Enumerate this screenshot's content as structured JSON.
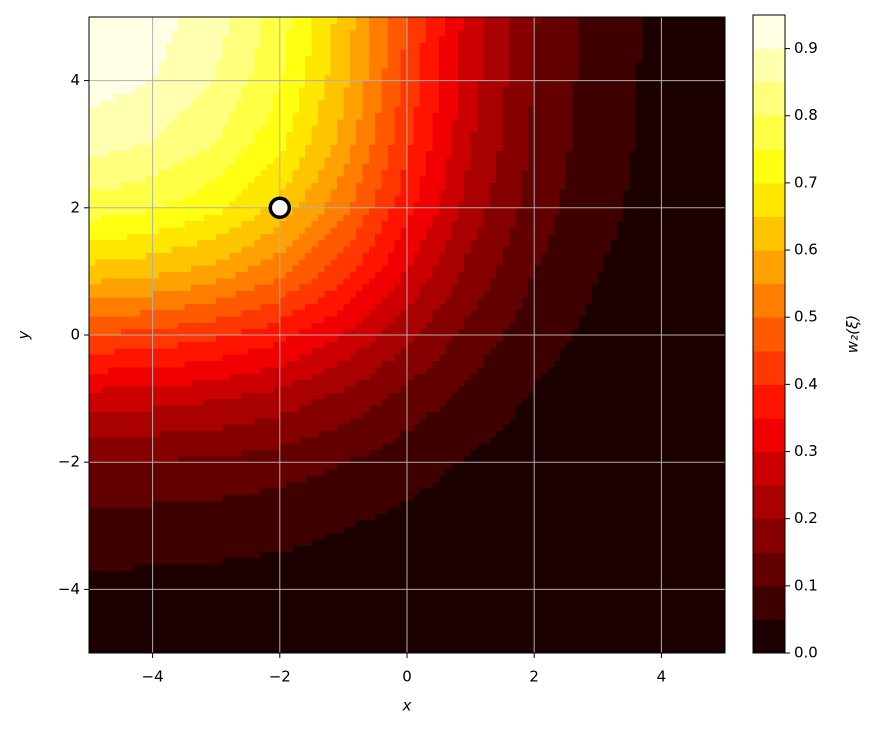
{
  "chart_data": {
    "type": "contour",
    "xlabel": "x",
    "ylabel": "y",
    "colorbar_label": "w₂(ξ)",
    "colormap": "hot",
    "grid": true,
    "x": [
      -5,
      -4,
      -3,
      -2,
      -1,
      0,
      1,
      2,
      3,
      4,
      5
    ],
    "y": [
      -5,
      -4,
      -3,
      -2,
      -1,
      0,
      1,
      2,
      3,
      4,
      5
    ],
    "z": [
      [
        0.018,
        0.017,
        0.016,
        0.014,
        0.012,
        0.008,
        0.005,
        0.003,
        0.001,
        0.001,
        0.0
      ],
      [
        0.037,
        0.036,
        0.034,
        0.03,
        0.025,
        0.017,
        0.011,
        0.006,
        0.003,
        0.001,
        0.001
      ],
      [
        0.077,
        0.075,
        0.071,
        0.063,
        0.051,
        0.036,
        0.022,
        0.012,
        0.006,
        0.003,
        0.001
      ],
      [
        0.151,
        0.147,
        0.139,
        0.124,
        0.1,
        0.071,
        0.044,
        0.024,
        0.012,
        0.006,
        0.003
      ],
      [
        0.276,
        0.268,
        0.253,
        0.226,
        0.183,
        0.13,
        0.08,
        0.044,
        0.022,
        0.011,
        0.005
      ],
      [
        0.448,
        0.435,
        0.41,
        0.366,
        0.297,
        0.211,
        0.13,
        0.071,
        0.036,
        0.017,
        0.008
      ],
      [
        0.63,
        0.612,
        0.578,
        0.515,
        0.417,
        0.297,
        0.183,
        0.1,
        0.051,
        0.025,
        0.012
      ],
      [
        0.777,
        0.756,
        0.713,
        0.635,
        0.515,
        0.366,
        0.226,
        0.124,
        0.063,
        0.03,
        0.014
      ],
      [
        0.872,
        0.848,
        0.799,
        0.713,
        0.578,
        0.41,
        0.253,
        0.139,
        0.071,
        0.034,
        0.016
      ],
      [
        0.924,
        0.899,
        0.848,
        0.756,
        0.612,
        0.435,
        0.268,
        0.147,
        0.075,
        0.036,
        0.017
      ],
      [
        0.951,
        0.924,
        0.872,
        0.777,
        0.63,
        0.448,
        0.276,
        0.155,
        0.077,
        0.037,
        0.018
      ]
    ],
    "levels": [
      0,
      0.05,
      0.1,
      0.15,
      0.2,
      0.25,
      0.3,
      0.35,
      0.4,
      0.45,
      0.5,
      0.55,
      0.6,
      0.65,
      0.7,
      0.75,
      0.8,
      0.85,
      0.9,
      0.95
    ],
    "point": {
      "x": -2,
      "y": 2
    },
    "xlim": [
      -5,
      5
    ],
    "ylim": [
      -5,
      5
    ],
    "xticks": [
      {
        "value": -4,
        "label": "−4"
      },
      {
        "value": -2,
        "label": "−2"
      },
      0,
      2,
      4
    ],
    "yticks": [
      {
        "value": -4,
        "label": "−4"
      },
      {
        "value": -2,
        "label": "−2"
      },
      0,
      2,
      4
    ],
    "colorbar_ticks": [
      {
        "value": 0,
        "label": "0.0"
      },
      0.1,
      0.2,
      0.3,
      0.4,
      0.5,
      0.6,
      0.7,
      0.8,
      0.9
    ]
  }
}
